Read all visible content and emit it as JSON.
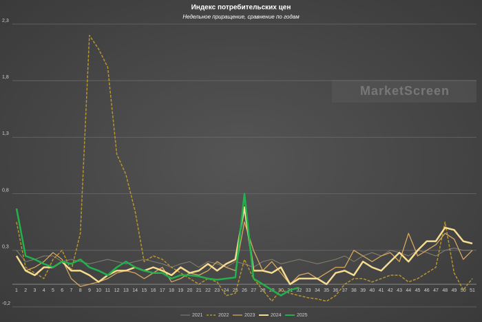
{
  "chart_data": {
    "type": "line",
    "title": "Индекс потребительских цен",
    "subtitle": "Недельное приращение, сравнение по годам",
    "annotation": "MarketScreen",
    "categories": [
      "1",
      "2",
      "3",
      "4",
      "5",
      "6",
      "7",
      "8",
      "9",
      "10",
      "11",
      "12",
      "13",
      "14",
      "15",
      "16",
      "17",
      "18",
      "19",
      "20",
      "21",
      "22",
      "23",
      "24",
      "25",
      "26",
      "27",
      "28",
      "29",
      "30",
      "31",
      "32",
      "33",
      "34",
      "35",
      "36",
      "37",
      "38",
      "39",
      "40",
      "41",
      "42",
      "43",
      "44",
      "45",
      "46",
      "47",
      "48",
      "49",
      "50",
      "51"
    ],
    "ylim": [
      -0.2,
      2.3
    ],
    "yticks": [
      {
        "value": -0.2,
        "label": "-0,2"
      },
      {
        "value": 0.3,
        "label": "0,3"
      },
      {
        "value": 0.8,
        "label": "0,8"
      },
      {
        "value": 1.3,
        "label": "1,3"
      },
      {
        "value": 1.8,
        "label": "1,8"
      },
      {
        "value": 2.3,
        "label": "2,3"
      }
    ],
    "grid": true,
    "legend": "bottom",
    "series": [
      {
        "name": "2021",
        "color": "#8a8070",
        "width": 1,
        "dash": false,
        "values": [
          0.3,
          0.2,
          0.22,
          0.25,
          0.25,
          0.2,
          0.22,
          0.2,
          0.18,
          0.2,
          0.22,
          0.2,
          0.18,
          0.2,
          0.22,
          0.2,
          0.18,
          0.15,
          0.18,
          0.2,
          0.15,
          0.2,
          0.18,
          0.15,
          0.2,
          0.18,
          0.15,
          0.2,
          0.22,
          0.18,
          0.2,
          0.22,
          0.2,
          0.18,
          0.2,
          0.22,
          0.25,
          0.2,
          0.25,
          0.28,
          0.25,
          0.3,
          0.28,
          0.25,
          0.3,
          0.28,
          0.25,
          0.3,
          0.32,
          0.3,
          0.3
        ]
      },
      {
        "name": "2022",
        "color": "#b8962e",
        "width": 1.5,
        "dash": true,
        "values": [
          0.55,
          0.15,
          0.1,
          0.05,
          0.22,
          0.3,
          0.12,
          0.45,
          2.2,
          2.08,
          1.92,
          1.15,
          0.97,
          0.65,
          0.2,
          0.25,
          0.22,
          0.15,
          0.1,
          0.05,
          0.0,
          0.05,
          0.02,
          -0.1,
          -0.08,
          0.22,
          0.05,
          -0.05,
          -0.15,
          -0.05,
          -0.08,
          -0.1,
          -0.12,
          -0.13,
          -0.15,
          -0.1,
          0.0,
          0.05,
          0.05,
          0.02,
          0.05,
          0.08,
          0.08,
          0.02,
          0.05,
          0.1,
          0.15,
          0.55,
          0.1,
          -0.05,
          0.05
        ]
      },
      {
        "name": "2023",
        "color": "#d9a860",
        "width": 1.3,
        "dash": false,
        "values": [
          0.25,
          0.12,
          0.15,
          0.2,
          0.28,
          0.22,
          0.05,
          -0.02,
          0.0,
          0.02,
          0.05,
          0.1,
          0.12,
          0.1,
          0.05,
          0.1,
          0.15,
          0.02,
          0.05,
          0.1,
          0.08,
          0.12,
          0.2,
          0.15,
          0.12,
          0.55,
          0.3,
          0.12,
          0.2,
          0.1,
          0.0,
          0.08,
          0.1,
          0.05,
          0.1,
          0.15,
          0.15,
          0.3,
          0.25,
          0.2,
          0.25,
          0.28,
          0.2,
          0.45,
          0.25,
          0.3,
          0.35,
          0.45,
          0.4,
          0.22,
          0.3
        ]
      },
      {
        "name": "2024",
        "color": "#f5dc90",
        "width": 2.5,
        "dash": false,
        "values": [
          0.25,
          0.12,
          0.08,
          0.15,
          0.15,
          0.2,
          0.12,
          0.12,
          0.08,
          0.02,
          0.08,
          0.12,
          0.12,
          0.15,
          0.12,
          0.15,
          0.12,
          0.08,
          0.15,
          0.1,
          0.12,
          0.18,
          0.12,
          0.18,
          0.22,
          0.68,
          0.12,
          0.12,
          0.1,
          0.15,
          0.0,
          0.05,
          0.05,
          0.05,
          0.0,
          0.1,
          0.12,
          0.08,
          0.2,
          0.15,
          0.12,
          0.2,
          0.28,
          0.2,
          0.3,
          0.38,
          0.38,
          0.5,
          0.48,
          0.38,
          0.36
        ]
      },
      {
        "name": "2025",
        "color": "#22b24c",
        "width": 2.5,
        "dash": false,
        "values": [
          0.67,
          0.25,
          0.22,
          0.18,
          0.15,
          0.2,
          0.18,
          0.22,
          0.15,
          0.12,
          0.08,
          0.15,
          0.2,
          0.15,
          0.12,
          0.1,
          0.1,
          0.05,
          0.08,
          0.08,
          0.07,
          0.05,
          0.04,
          0.05,
          0.06,
          0.8,
          0.05,
          0.0,
          -0.05,
          -0.1,
          -0.05,
          -0.03,
          null,
          null,
          null,
          null,
          null,
          null,
          null,
          null,
          null,
          null,
          null,
          null,
          null,
          null,
          null,
          null,
          null,
          null,
          null
        ]
      }
    ]
  }
}
